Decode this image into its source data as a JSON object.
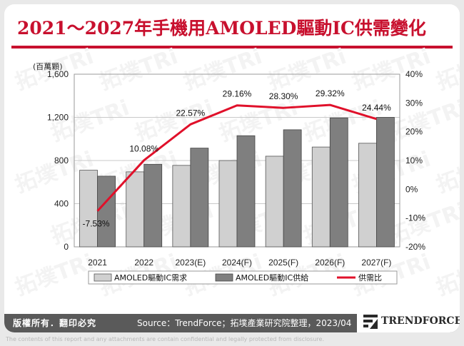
{
  "title": "2021～2027年手機用AMOLED驅動IC供需變化",
  "footer": {
    "copyright": "版權所有．翻印必究",
    "source": "Source：TrendForce；拓墣產業研究院整理，2023/04"
  },
  "logo": {
    "text": "TRENDFORCE",
    "icon": "trendforce-logo-icon"
  },
  "watermark": "拓墣TRi",
  "disclaimer": "The contents of this report and any attachments are contain confidential and legally protected from disclosure.",
  "colors": {
    "accent": "#c8102e",
    "demand_bar": "#d0d0d0",
    "supply_bar": "#7f7f7f",
    "ratio_line": "#e0102a",
    "footer_bg": "#5a5a5a"
  },
  "chart_data": {
    "type": "bar",
    "categories": [
      "2021",
      "2022",
      "2023(E)",
      "2024(F)",
      "2025(F)",
      "2026(F)",
      "2027(F)"
    ],
    "ylabel_left": "(百萬顆)",
    "ylim_left": [
      0,
      1600
    ],
    "yticks_left": [
      "0",
      "400",
      "800",
      "1,200",
      "1,600"
    ],
    "yticks_left_values": [
      0,
      400,
      800,
      1200,
      1600
    ],
    "ylim_right": [
      -20,
      40
    ],
    "yticks_right": [
      "-20%",
      "-10%",
      "0%",
      "10%",
      "20%",
      "30%",
      "40%"
    ],
    "yticks_right_values": [
      -20,
      -10,
      0,
      10,
      20,
      30,
      40
    ],
    "series": [
      {
        "name": "AMOLED驅動IC需求",
        "kind": "bar",
        "axis": "left",
        "values": [
          710,
          695,
          755,
          800,
          840,
          925,
          960
        ]
      },
      {
        "name": "AMOLED驅動IC供給",
        "kind": "bar",
        "axis": "left",
        "values": [
          655,
          765,
          915,
          1030,
          1085,
          1195,
          1200
        ]
      },
      {
        "name": "供需比",
        "kind": "line",
        "axis": "right",
        "values": [
          -7.53,
          10.08,
          22.57,
          29.16,
          28.3,
          29.32,
          24.44
        ],
        "labels": [
          "-7.53%",
          "10.08%",
          "22.57%",
          "29.16%",
          "28.30%",
          "29.32%",
          "24.44%"
        ]
      }
    ],
    "grid": "horizontal",
    "legend": "bottom"
  }
}
